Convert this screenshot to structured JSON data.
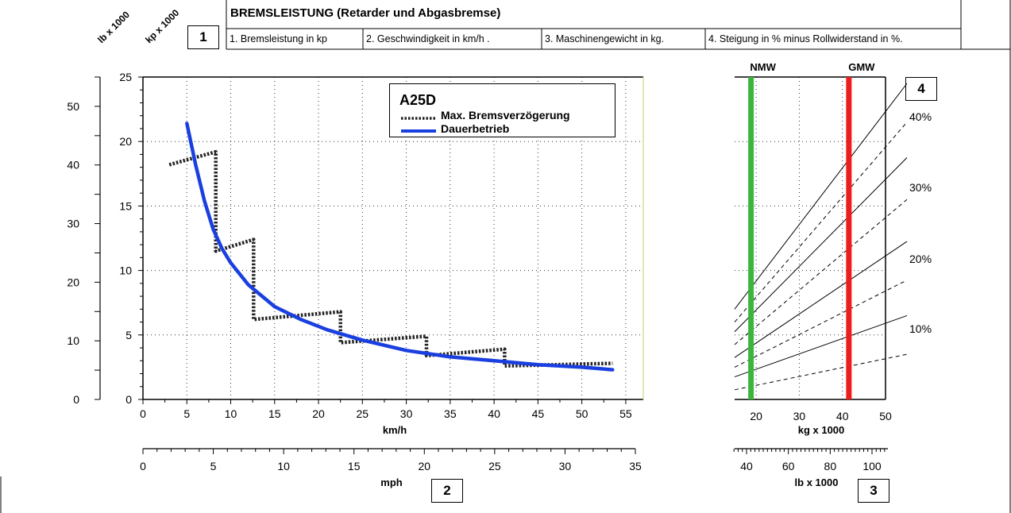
{
  "header": {
    "title": "BREMSLEISTUNG (Retarder und Abgasbremse)",
    "items": [
      "1. Bremsleistung in kp",
      "2. Geschwindigkeit in km/h .",
      "3. Maschinengewicht in kg.",
      "4. Steigung in % minus Rollwiderstand in %."
    ]
  },
  "boxes": {
    "b1": "1",
    "b2": "2",
    "b3": "3",
    "b4": "4"
  },
  "chart_data": [
    {
      "type": "line",
      "title": "A25D",
      "xlabel": "km/h",
      "ylabel": "kp x 1000",
      "ylabel2": "lb x 1000",
      "xlabel2": "mph",
      "xlim": [
        0,
        57
      ],
      "ylim": [
        0,
        25
      ],
      "x_ticks": [
        0,
        5,
        10,
        15,
        20,
        25,
        30,
        35,
        40,
        45,
        50,
        55
      ],
      "y_ticks": [
        0,
        5,
        10,
        15,
        20,
        25
      ],
      "y2_ticks": [
        0,
        10,
        20,
        30,
        40,
        50
      ],
      "x2_ticks": [
        0,
        5,
        10,
        15,
        20,
        25,
        30,
        35
      ],
      "grid": true,
      "legend_position": "top-right",
      "series": [
        {
          "name": "Max. Bremsverzögerung",
          "color": "#222222",
          "style": "dotted",
          "points": [
            [
              3,
              18.2
            ],
            [
              8.3,
              19.2
            ],
            [
              8.3,
              11.5
            ],
            [
              12.6,
              12.4
            ],
            [
              12.6,
              6.2
            ],
            [
              22.5,
              6.8
            ],
            [
              22.5,
              4.4
            ],
            [
              32.3,
              4.9
            ],
            [
              32.3,
              3.4
            ],
            [
              41.2,
              3.9
            ],
            [
              41.2,
              2.6
            ],
            [
              53.5,
              2.8
            ]
          ]
        },
        {
          "name": "Dauerbetrieb",
          "color": "#1a3fe0",
          "style": "solid",
          "points": [
            [
              5,
              21.4
            ],
            [
              6,
              18.2
            ],
            [
              7,
              15.4
            ],
            [
              8,
              13.2
            ],
            [
              9,
              11.7
            ],
            [
              10,
              10.6
            ],
            [
              12,
              8.9
            ],
            [
              15,
              7.2
            ],
            [
              18,
              6.2
            ],
            [
              21,
              5.4
            ],
            [
              25,
              4.6
            ],
            [
              30,
              3.8
            ],
            [
              35,
              3.3
            ],
            [
              40,
              3.0
            ],
            [
              45,
              2.7
            ],
            [
              50,
              2.5
            ],
            [
              53.5,
              2.3
            ]
          ]
        }
      ]
    },
    {
      "type": "line",
      "xlabel": "kg x 1000",
      "xlabel2": "lb x 1000",
      "xlim": [
        15,
        50
      ],
      "x_ticks": [
        20,
        30,
        40,
        50
      ],
      "x2_ticks": [
        40,
        60,
        80,
        100
      ],
      "markers": [
        {
          "label": "NMW",
          "value": 18.8,
          "color": "#3cb53c"
        },
        {
          "label": "GMW",
          "value": 41.5,
          "color": "#ee1c1c"
        }
      ],
      "grade_labels": [
        "40%",
        "30%",
        "20%",
        "10%"
      ],
      "grade_lines": [
        {
          "grade": 40,
          "start": 0.28,
          "end": 0.98
        },
        {
          "grade": 35,
          "start": 0.24,
          "end": 0.86,
          "style": "dashed"
        },
        {
          "grade": 30,
          "start": 0.21,
          "end": 0.75
        },
        {
          "grade": 25,
          "start": 0.17,
          "end": 0.62,
          "style": "dashed"
        },
        {
          "grade": 20,
          "start": 0.13,
          "end": 0.49
        },
        {
          "grade": 15,
          "start": 0.1,
          "end": 0.37,
          "style": "dashed"
        },
        {
          "grade": 10,
          "start": 0.07,
          "end": 0.26
        },
        {
          "grade": 5,
          "start": 0.03,
          "end": 0.14,
          "style": "dashed"
        }
      ]
    }
  ]
}
